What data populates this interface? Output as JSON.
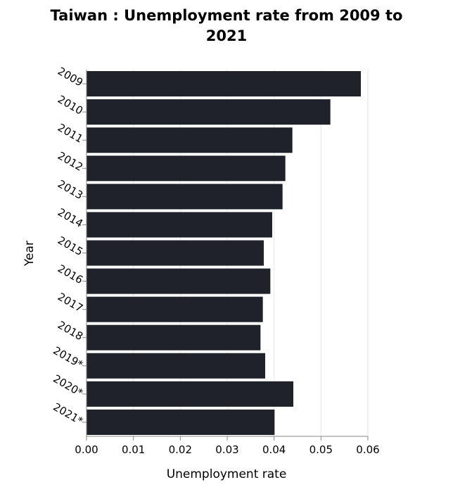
{
  "chart_data": {
    "type": "bar",
    "orientation": "horizontal",
    "title_line1": "Taiwan : Unemployment rate from 2009 to",
    "title_line2": "2021",
    "xlabel": "Unemployment rate",
    "ylabel": "Year",
    "categories": [
      "2009",
      "2010",
      "2011",
      "2012",
      "2013",
      "2014",
      "2015",
      "2016",
      "2017",
      "2018",
      "2019*",
      "2020*",
      "2021*"
    ],
    "values": [
      0.0585,
      0.052,
      0.0439,
      0.0424,
      0.0418,
      0.0396,
      0.0378,
      0.0392,
      0.0376,
      0.0371,
      0.0381,
      0.0441,
      0.0401
    ],
    "xlim": [
      0,
      0.06
    ],
    "xticks": [
      "0.00",
      "0.01",
      "0.02",
      "0.03",
      "0.04",
      "0.05",
      "0.06"
    ],
    "grid": true,
    "bar_color": "#1f2329"
  }
}
